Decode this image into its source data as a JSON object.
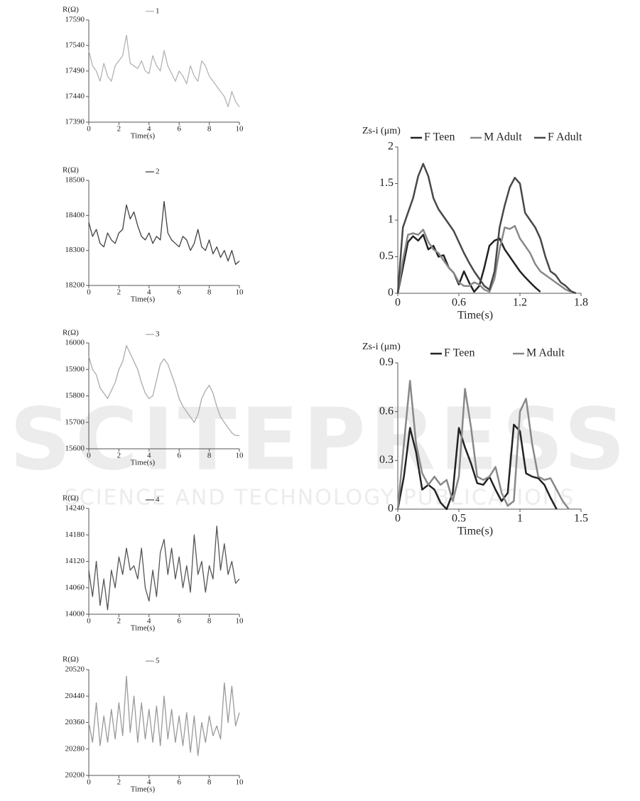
{
  "watermark": {
    "title": "SCITEPRESS",
    "subtitle": "SCIENCE AND TECHNOLOGY PUBLICATIONS"
  },
  "chart_data": [
    {
      "type": "line",
      "ylabel": "R(Ω)",
      "xlabel": "Time(s)",
      "xlim": [
        0,
        10
      ],
      "ylim": [
        17390,
        17590
      ],
      "xticks": [
        0,
        2,
        4,
        6,
        8,
        10
      ],
      "yticks": [
        17390,
        17440,
        17490,
        17540,
        17590
      ],
      "x": [
        0,
        0.25,
        0.5,
        0.75,
        1,
        1.25,
        1.5,
        1.75,
        2,
        2.25,
        2.5,
        2.75,
        3,
        3.25,
        3.5,
        3.75,
        4,
        4.25,
        4.5,
        4.75,
        5,
        5.25,
        5.5,
        5.75,
        6,
        6.25,
        6.5,
        6.75,
        7,
        7.25,
        7.5,
        7.75,
        8,
        8.25,
        8.5,
        8.75,
        9,
        9.25,
        9.5,
        9.75,
        10
      ],
      "series": [
        {
          "name": "1",
          "color": "#b3b3b3",
          "values": [
            17530,
            17500,
            17490,
            17470,
            17505,
            17480,
            17470,
            17500,
            17510,
            17520,
            17560,
            17505,
            17500,
            17495,
            17510,
            17490,
            17485,
            17520,
            17500,
            17490,
            17530,
            17500,
            17485,
            17470,
            17490,
            17480,
            17465,
            17500,
            17480,
            17470,
            17510,
            17500,
            17480,
            17470,
            17460,
            17450,
            17440,
            17420,
            17450,
            17430,
            17420
          ]
        }
      ]
    },
    {
      "type": "line",
      "ylabel": "R(Ω)",
      "xlabel": "Time(s)",
      "xlim": [
        0,
        10
      ],
      "ylim": [
        18200,
        18500
      ],
      "xticks": [
        0,
        2,
        4,
        6,
        8,
        10
      ],
      "yticks": [
        18200,
        18300,
        18400,
        18500
      ],
      "x": [
        0,
        0.25,
        0.5,
        0.75,
        1,
        1.25,
        1.5,
        1.75,
        2,
        2.25,
        2.5,
        2.75,
        3,
        3.25,
        3.5,
        3.75,
        4,
        4.25,
        4.5,
        4.75,
        5,
        5.25,
        5.5,
        5.75,
        6,
        6.25,
        6.5,
        6.75,
        7,
        7.25,
        7.5,
        7.75,
        8,
        8.25,
        8.5,
        8.75,
        9,
        9.25,
        9.5,
        9.75,
        10
      ],
      "series": [
        {
          "name": "2",
          "color": "#404040",
          "values": [
            18380,
            18340,
            18360,
            18320,
            18310,
            18350,
            18330,
            18320,
            18350,
            18360,
            18430,
            18390,
            18410,
            18370,
            18340,
            18330,
            18350,
            18320,
            18340,
            18330,
            18440,
            18350,
            18330,
            18320,
            18310,
            18340,
            18330,
            18300,
            18320,
            18360,
            18310,
            18300,
            18330,
            18290,
            18310,
            18280,
            18300,
            18270,
            18300,
            18260,
            18270
          ]
        }
      ]
    },
    {
      "type": "line",
      "ylabel": "R(Ω)",
      "xlabel": "Time(s)",
      "xlim": [
        0,
        10
      ],
      "ylim": [
        15600,
        16000
      ],
      "xticks": [
        0,
        2,
        4,
        6,
        8,
        10
      ],
      "yticks": [
        15600,
        15700,
        15800,
        15900,
        16000
      ],
      "x": [
        0,
        0.25,
        0.5,
        0.75,
        1,
        1.25,
        1.5,
        1.75,
        2,
        2.25,
        2.5,
        2.75,
        3,
        3.25,
        3.5,
        3.75,
        4,
        4.25,
        4.5,
        4.75,
        5,
        5.25,
        5.5,
        5.75,
        6,
        6.25,
        6.5,
        6.75,
        7,
        7.25,
        7.5,
        7.75,
        8,
        8.25,
        8.5,
        8.75,
        9,
        9.25,
        9.5,
        9.75,
        10
      ],
      "series": [
        {
          "name": "3",
          "color": "#ababab",
          "values": [
            15950,
            15900,
            15880,
            15830,
            15810,
            15790,
            15820,
            15850,
            15900,
            15930,
            15990,
            15960,
            15930,
            15900,
            15850,
            15810,
            15790,
            15800,
            15860,
            15920,
            15940,
            15920,
            15880,
            15840,
            15790,
            15760,
            15740,
            15720,
            15700,
            15730,
            15790,
            15820,
            15840,
            15810,
            15760,
            15720,
            15700,
            15680,
            15660,
            15650,
            15650
          ]
        }
      ]
    },
    {
      "type": "line",
      "ylabel": "R(Ω)",
      "xlabel": "Time(s)",
      "xlim": [
        0,
        10
      ],
      "ylim": [
        14000,
        14240
      ],
      "xticks": [
        0,
        2,
        4,
        6,
        8,
        10
      ],
      "yticks": [
        14000,
        14060,
        14120,
        14180,
        14240
      ],
      "x": [
        0,
        0.25,
        0.5,
        0.75,
        1,
        1.25,
        1.5,
        1.75,
        2,
        2.25,
        2.5,
        2.75,
        3,
        3.25,
        3.5,
        3.75,
        4,
        4.25,
        4.5,
        4.75,
        5,
        5.25,
        5.5,
        5.75,
        6,
        6.25,
        6.5,
        6.75,
        7,
        7.25,
        7.5,
        7.75,
        8,
        8.25,
        8.5,
        8.75,
        9,
        9.25,
        9.5,
        9.75,
        10
      ],
      "series": [
        {
          "name": "4",
          "color": "#555555",
          "values": [
            14100,
            14040,
            14120,
            14020,
            14080,
            14010,
            14100,
            14060,
            14130,
            14090,
            14150,
            14100,
            14110,
            14080,
            14150,
            14060,
            14030,
            14100,
            14040,
            14140,
            14170,
            14090,
            14150,
            14080,
            14130,
            14060,
            14110,
            14050,
            14180,
            14090,
            14120,
            14050,
            14110,
            14080,
            14200,
            14100,
            14160,
            14090,
            14120,
            14070,
            14080
          ]
        }
      ]
    },
    {
      "type": "line",
      "ylabel": "R(Ω)",
      "xlabel": "Time(s)",
      "xlim": [
        0,
        10
      ],
      "ylim": [
        20200,
        20520
      ],
      "xticks": [
        0,
        2,
        4,
        6,
        8,
        10
      ],
      "yticks": [
        20200,
        20280,
        20360,
        20440,
        20520
      ],
      "x": [
        0,
        0.25,
        0.5,
        0.75,
        1,
        1.25,
        1.5,
        1.75,
        2,
        2.25,
        2.5,
        2.75,
        3,
        3.25,
        3.5,
        3.75,
        4,
        4.25,
        4.5,
        4.75,
        5,
        5.25,
        5.5,
        5.75,
        6,
        6.25,
        6.5,
        6.75,
        7,
        7.25,
        7.5,
        7.75,
        8,
        8.25,
        8.5,
        8.75,
        9,
        9.25,
        9.5,
        9.75,
        10
      ],
      "series": [
        {
          "name": "5",
          "color": "#999999",
          "values": [
            20360,
            20300,
            20420,
            20290,
            20380,
            20300,
            20400,
            20310,
            20420,
            20320,
            20500,
            20330,
            20440,
            20300,
            20420,
            20310,
            20400,
            20300,
            20410,
            20290,
            20440,
            20310,
            20400,
            20300,
            20380,
            20290,
            20390,
            20270,
            20380,
            20260,
            20360,
            20300,
            20380,
            20320,
            20350,
            20310,
            20480,
            20360,
            20470,
            20350,
            20390
          ]
        }
      ]
    },
    {
      "type": "line",
      "ylabel": "Zs-i (μm)",
      "xlabel": "Time(s)",
      "xlim": [
        0,
        1.8
      ],
      "ylim": [
        0,
        2
      ],
      "xticks": [
        0,
        0.6,
        1.2,
        1.8
      ],
      "yticks": [
        0,
        0.5,
        1,
        1.5,
        2
      ],
      "x": [
        0,
        0.05,
        0.1,
        0.15,
        0.2,
        0.25,
        0.3,
        0.35,
        0.4,
        0.45,
        0.5,
        0.55,
        0.6,
        0.65,
        0.7,
        0.75,
        0.8,
        0.85,
        0.9,
        0.95,
        1,
        1.05,
        1.1,
        1.15,
        1.2,
        1.25,
        1.3,
        1.35,
        1.4,
        1.45,
        1.5,
        1.55,
        1.6,
        1.65,
        1.7,
        1.75,
        1.8
      ],
      "series": [
        {
          "name": "F Teen",
          "color": "#222222",
          "values": [
            0,
            0.35,
            0.7,
            0.78,
            0.72,
            0.8,
            0.6,
            0.65,
            0.5,
            0.52,
            0.35,
            0.28,
            0.12,
            0.3,
            0.15,
            0.02,
            0.1,
            0.35,
            0.65,
            0.72,
            0.75,
            0.6,
            0.5,
            0.4,
            0.3,
            0.22,
            0.15,
            0.08,
            0.02,
            null,
            null,
            null,
            null,
            null,
            null,
            null,
            null
          ]
        },
        {
          "name": "M Adult",
          "color": "#888888",
          "values": [
            0,
            0.45,
            0.8,
            0.82,
            0.8,
            0.87,
            0.7,
            0.6,
            0.55,
            0.45,
            0.35,
            0.28,
            0.15,
            0.1,
            0.1,
            0.15,
            0.12,
            0.05,
            0.02,
            0.2,
            0.6,
            0.9,
            0.88,
            0.92,
            0.75,
            0.65,
            0.55,
            0.4,
            0.3,
            0.25,
            0.2,
            0.15,
            0.1,
            0.05,
            0.02,
            null,
            null
          ]
        },
        {
          "name": "F Adult",
          "color": "#484848",
          "values": [
            0,
            0.9,
            1.1,
            1.3,
            1.6,
            1.77,
            1.6,
            1.3,
            1.15,
            1.05,
            0.95,
            0.85,
            0.7,
            0.55,
            0.42,
            0.3,
            0.2,
            0.1,
            0.05,
            0.3,
            0.9,
            1.2,
            1.45,
            1.58,
            1.5,
            1.1,
            1,
            0.9,
            0.75,
            0.5,
            0.3,
            0.25,
            0.15,
            0.1,
            0.03,
            0,
            null
          ]
        }
      ]
    },
    {
      "type": "line",
      "ylabel": "Zs-i (μm)",
      "xlabel": "Time(s)",
      "xlim": [
        0,
        1.5
      ],
      "ylim": [
        0,
        0.9
      ],
      "xticks": [
        0,
        0.5,
        1,
        1.5
      ],
      "yticks": [
        0,
        0.3,
        0.6,
        0.9
      ],
      "x": [
        0,
        0.05,
        0.1,
        0.15,
        0.2,
        0.25,
        0.3,
        0.35,
        0.4,
        0.45,
        0.5,
        0.55,
        0.6,
        0.65,
        0.7,
        0.75,
        0.8,
        0.85,
        0.9,
        0.95,
        1,
        1.05,
        1.1,
        1.15,
        1.2,
        1.25,
        1.3,
        1.35,
        1.4,
        1.45,
        1.5
      ],
      "series": [
        {
          "name": "F Teen",
          "color": "#222222",
          "values": [
            0,
            0.2,
            0.5,
            0.35,
            0.12,
            0.15,
            0.12,
            0.04,
            0,
            0.1,
            0.5,
            0.38,
            0.28,
            0.16,
            0.15,
            0.2,
            0.12,
            0.05,
            0.1,
            0.52,
            0.48,
            0.22,
            0.2,
            0.19,
            0.15,
            0.07,
            0,
            null,
            null,
            null,
            null
          ]
        },
        {
          "name": "M Adult",
          "color": "#888888",
          "values": [
            0,
            0.4,
            0.79,
            0.4,
            0.22,
            0.15,
            0.2,
            0.15,
            0.18,
            0.05,
            0.2,
            0.74,
            0.5,
            0.2,
            0.18,
            0.2,
            0.26,
            0.1,
            0.02,
            0.05,
            0.6,
            0.68,
            0.4,
            0.2,
            0.18,
            0.19,
            0.12,
            0.05,
            0,
            null,
            null
          ]
        }
      ]
    }
  ]
}
